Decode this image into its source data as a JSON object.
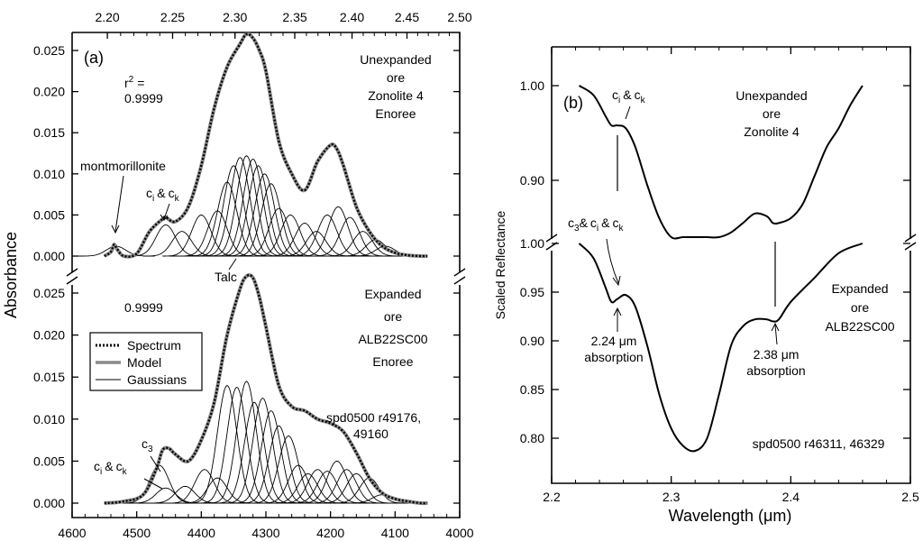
{
  "figure": {
    "panel_a": {
      "label": "(a)",
      "top_axis_ticks": [
        "2.20",
        "2.25",
        "2.30",
        "2.35",
        "2.40",
        "2.45",
        "2.50"
      ],
      "bottom_axis_ticks": [
        "4600",
        "4500",
        "4400",
        "4300",
        "4200",
        "4100",
        "4000"
      ],
      "ylabel": "Absorbance",
      "y_ticks_upper": [
        "0.025",
        "0.020",
        "0.015",
        "0.010",
        "0.005",
        "0.000"
      ],
      "y_ticks_lower": [
        "0.025",
        "0.020",
        "0.015",
        "0.010",
        "0.005",
        "0.000"
      ],
      "upper": {
        "r2_label": "r",
        "r2_sup": "2",
        "r2_eq": "=",
        "r2_value": "0.9999",
        "title_lines": [
          "Unexpanded",
          "ore",
          "Zonolite 4",
          "Enoree"
        ],
        "montmorillonite": "montmorillonite",
        "talc": "Talc"
      },
      "lower": {
        "r2_value": "0.9999",
        "title_lines": [
          "Expanded",
          "ore",
          "ALB22SC00",
          "Enoree"
        ],
        "spec_ref": [
          "spd0500 r49176,",
          "49160"
        ],
        "c3": "c",
        "c3_sub": "3"
      },
      "ci_ck": {
        "c": "c",
        "i": "i",
        "amp": "&",
        "k": "k"
      },
      "legend": [
        {
          "label": "Spectrum",
          "style": "dotted"
        },
        {
          "label": "Model",
          "style": "gray"
        },
        {
          "label": "Gaussians",
          "style": "thin"
        }
      ]
    },
    "panel_b": {
      "label": "(b)",
      "xlabel": "Wavelength (μm)",
      "ylabel": "Scaled Reflectance",
      "x_ticks": [
        "2.2",
        "2.3",
        "2.4",
        "2.5"
      ],
      "y_ticks_upper": [
        "1.00",
        "0.90"
      ],
      "y_ticks_lower": [
        "1.00",
        "0.95",
        "0.90",
        "0.85",
        "0.80"
      ],
      "upper_title": [
        "Unexpanded",
        "ore",
        "Zonolite 4"
      ],
      "lower_title": [
        "Expanded",
        "ore",
        "ALB22SC00"
      ],
      "abs224": [
        "2.24 μm",
        "absorption"
      ],
      "abs238": [
        "2.38 μm",
        "absorption"
      ],
      "spec_ref": "spd0500 r46311, 46329",
      "c3_ci_ck": {
        "c3": "c",
        "c3_sub": "3",
        "amp": "&"
      }
    }
  },
  "chart_data": [
    {
      "type": "line",
      "panel": "(a) upper",
      "xlabel": "",
      "ylabel": "Absorbance",
      "x_units": "cm-1 (bottom axis); top axis wavelength in μm",
      "xlim": [
        4600,
        4000
      ],
      "ylim": [
        0,
        0.027
      ],
      "series": [
        {
          "name": "Spectrum",
          "x": [
            4550,
            4540,
            4535,
            4530,
            4520,
            4500,
            4480,
            4460,
            4455,
            4440,
            4420,
            4400,
            4380,
            4360,
            4340,
            4330,
            4320,
            4310,
            4300,
            4280,
            4260,
            4240,
            4220,
            4200,
            4190,
            4180,
            4160,
            4140,
            4120,
            4100,
            4080,
            4060,
            4050
          ],
          "y": [
            0,
            0.0005,
            0.0014,
            0.0008,
            0,
            0.0003,
            0.003,
            0.0045,
            0.0047,
            0.0042,
            0.006,
            0.011,
            0.018,
            0.023,
            0.0258,
            0.027,
            0.0265,
            0.025,
            0.0225,
            0.014,
            0.01,
            0.008,
            0.0115,
            0.0135,
            0.013,
            0.011,
            0.006,
            0.003,
            0.0012,
            0.0004,
            0.0001,
            0,
            0
          ]
        }
      ],
      "gaussians": {
        "centers": [
          4532,
          4455,
          4430,
          4400,
          4375,
          4360,
          4350,
          4340,
          4330,
          4320,
          4312,
          4302,
          4292,
          4280,
          4262,
          4240,
          4222,
          4205,
          4188,
          4170,
          4150,
          4130,
          4115
        ],
        "amplitudes": [
          0.0012,
          0.0038,
          0.003,
          0.005,
          0.0055,
          0.009,
          0.011,
          0.012,
          0.0122,
          0.0118,
          0.011,
          0.01,
          0.0088,
          0.0058,
          0.005,
          0.004,
          0.003,
          0.005,
          0.006,
          0.0047,
          0.003,
          0.002,
          0.0012
        ],
        "sigma": 15
      },
      "annotations": [
        "montmorillonite",
        "c_i & c_k",
        "Talc",
        "r2 = 0.9999"
      ]
    },
    {
      "type": "line",
      "panel": "(a) lower",
      "ylabel": "Absorbance",
      "xlim": [
        4600,
        4000
      ],
      "ylim": [
        0,
        0.027
      ],
      "series": [
        {
          "name": "Spectrum",
          "x": [
            4550,
            4520,
            4490,
            4470,
            4460,
            4450,
            4440,
            4420,
            4400,
            4380,
            4360,
            4340,
            4330,
            4320,
            4310,
            4300,
            4280,
            4260,
            4240,
            4220,
            4200,
            4180,
            4160,
            4140,
            4120,
            4100,
            4080,
            4060,
            4050
          ],
          "y": [
            0,
            0.0002,
            0.001,
            0.004,
            0.0063,
            0.0065,
            0.0058,
            0.005,
            0.0075,
            0.012,
            0.02,
            0.0255,
            0.027,
            0.0268,
            0.0245,
            0.021,
            0.014,
            0.0115,
            0.011,
            0.01,
            0.0095,
            0.0085,
            0.006,
            0.003,
            0.0012,
            0.0005,
            0.0002,
            0,
            0
          ]
        }
      ],
      "gaussians": {
        "centers": [
          4465,
          4455,
          4425,
          4395,
          4375,
          4360,
          4345,
          4330,
          4318,
          4305,
          4292,
          4280,
          4265,
          4250,
          4235,
          4220,
          4205,
          4190,
          4175,
          4160,
          4140,
          4120
        ],
        "amplitudes": [
          0.0045,
          0.0018,
          0.002,
          0.004,
          0.003,
          0.014,
          0.0138,
          0.0145,
          0.012,
          0.0125,
          0.011,
          0.0092,
          0.008,
          0.0045,
          0.0035,
          0.004,
          0.0038,
          0.005,
          0.004,
          0.0035,
          0.003,
          0.001
        ],
        "sigma": 15
      },
      "annotations": [
        "c_3",
        "c_i & c_k",
        "0.9999",
        "spd0500 r49176, 49160"
      ]
    },
    {
      "type": "line",
      "panel": "(b) upper",
      "xlabel": "Wavelength (μm)",
      "ylabel": "Scaled Reflectance",
      "xlim": [
        2.2,
        2.5
      ],
      "ylim": [
        0.84,
        1.02
      ],
      "series": [
        {
          "name": "Unexpanded ore Zonolite 4",
          "x": [
            2.223,
            2.235,
            2.245,
            2.25,
            2.255,
            2.262,
            2.27,
            2.28,
            2.29,
            2.3,
            2.31,
            2.32,
            2.33,
            2.34,
            2.35,
            2.36,
            2.37,
            2.38,
            2.385,
            2.39,
            2.4,
            2.41,
            2.42,
            2.43,
            2.44,
            2.45,
            2.46
          ],
          "y": [
            1.0,
            0.99,
            0.968,
            0.958,
            0.958,
            0.955,
            0.935,
            0.895,
            0.86,
            0.84,
            0.84,
            0.84,
            0.84,
            0.84,
            0.845,
            0.855,
            0.865,
            0.862,
            0.855,
            0.855,
            0.86,
            0.875,
            0.905,
            0.935,
            0.955,
            0.98,
            1.0
          ]
        }
      ]
    },
    {
      "type": "line",
      "panel": "(b) lower",
      "xlabel": "Wavelength (μm)",
      "ylabel": "Scaled Reflectance",
      "xlim": [
        2.2,
        2.5
      ],
      "ylim": [
        0.775,
        1.01
      ],
      "series": [
        {
          "name": "Expanded ore ALB22SC00",
          "x": [
            2.223,
            2.235,
            2.245,
            2.25,
            2.255,
            2.262,
            2.27,
            2.28,
            2.29,
            2.3,
            2.31,
            2.32,
            2.33,
            2.34,
            2.35,
            2.36,
            2.37,
            2.38,
            2.385,
            2.39,
            2.4,
            2.42,
            2.44,
            2.46
          ],
          "y": [
            1.0,
            0.985,
            0.955,
            0.94,
            0.943,
            0.947,
            0.935,
            0.895,
            0.845,
            0.81,
            0.792,
            0.787,
            0.8,
            0.845,
            0.895,
            0.915,
            0.922,
            0.922,
            0.92,
            0.922,
            0.94,
            0.965,
            0.99,
            1.0
          ]
        }
      ],
      "annotations": [
        "2.24 μm absorption",
        "2.38 μm absorption",
        "spd0500 r46311, 46329"
      ]
    }
  ]
}
